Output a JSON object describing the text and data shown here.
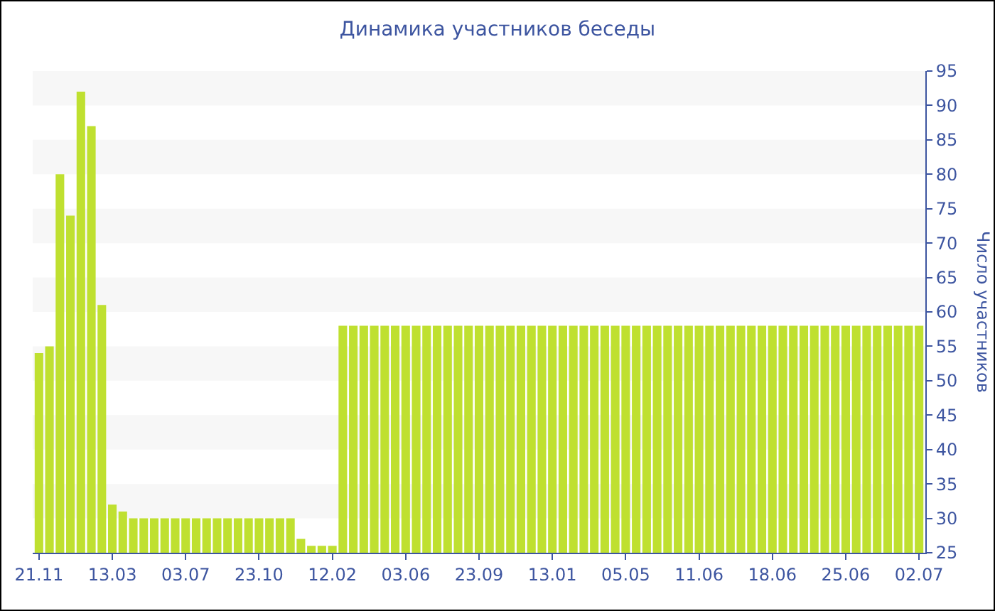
{
  "chart_data": {
    "type": "bar",
    "title": "Динамика участников беседы",
    "ylabel": "Число участников",
    "categories": [
      "21.11",
      null,
      null,
      null,
      null,
      null,
      null,
      "13.03",
      null,
      null,
      null,
      null,
      null,
      null,
      "03.07",
      null,
      null,
      null,
      null,
      null,
      null,
      "23.10",
      null,
      null,
      null,
      null,
      null,
      null,
      "12.02",
      null,
      null,
      null,
      null,
      null,
      null,
      "03.06",
      null,
      null,
      null,
      null,
      null,
      null,
      "23.09",
      null,
      null,
      null,
      null,
      null,
      null,
      "13.01",
      null,
      null,
      null,
      null,
      null,
      null,
      "05.05",
      null,
      null,
      null,
      null,
      null,
      null,
      "11.06",
      null,
      null,
      null,
      null,
      null,
      null,
      "18.06",
      null,
      null,
      null,
      null,
      null,
      null,
      "25.06",
      null,
      null,
      null,
      null,
      null,
      null,
      "02.07"
    ],
    "values": [
      54,
      55,
      80,
      74,
      92,
      87,
      61,
      32,
      31,
      30,
      30,
      30,
      30,
      30,
      30,
      30,
      30,
      30,
      30,
      30,
      30,
      30,
      30,
      30,
      30,
      27,
      26,
      26,
      26,
      58,
      58,
      58,
      58,
      58,
      58,
      58,
      58,
      58,
      58,
      58,
      58,
      58,
      58,
      58,
      58,
      58,
      58,
      58,
      58,
      58,
      58,
      58,
      58,
      58,
      58,
      58,
      58,
      58,
      58,
      58,
      58,
      58,
      58,
      58,
      58,
      58,
      58,
      58,
      58,
      58,
      58,
      58,
      58,
      58,
      58,
      58,
      58,
      58,
      58,
      58,
      58,
      58,
      58,
      58,
      58
    ],
    "color": "#bfe030",
    "ylim": [
      25,
      95
    ],
    "yticks": [
      25,
      30,
      35,
      40,
      45,
      50,
      55,
      60,
      65,
      70,
      75,
      80,
      85,
      90,
      95
    ],
    "bands": [
      {
        "axis": "y",
        "from": 90,
        "to": 95,
        "color": "#f7f7f7"
      },
      {
        "axis": "y",
        "from": 80,
        "to": 85,
        "color": "#f7f7f7"
      },
      {
        "axis": "y",
        "from": 70,
        "to": 75,
        "color": "#f7f7f7"
      },
      {
        "axis": "y",
        "from": 60,
        "to": 65,
        "color": "#f7f7f7"
      },
      {
        "axis": "y",
        "from": 50,
        "to": 55,
        "color": "#f7f7f7"
      },
      {
        "axis": "y",
        "from": 40,
        "to": 45,
        "color": "#f7f7f7"
      },
      {
        "axis": "y",
        "from": 30,
        "to": 35,
        "color": "#f7f7f7"
      }
    ]
  }
}
